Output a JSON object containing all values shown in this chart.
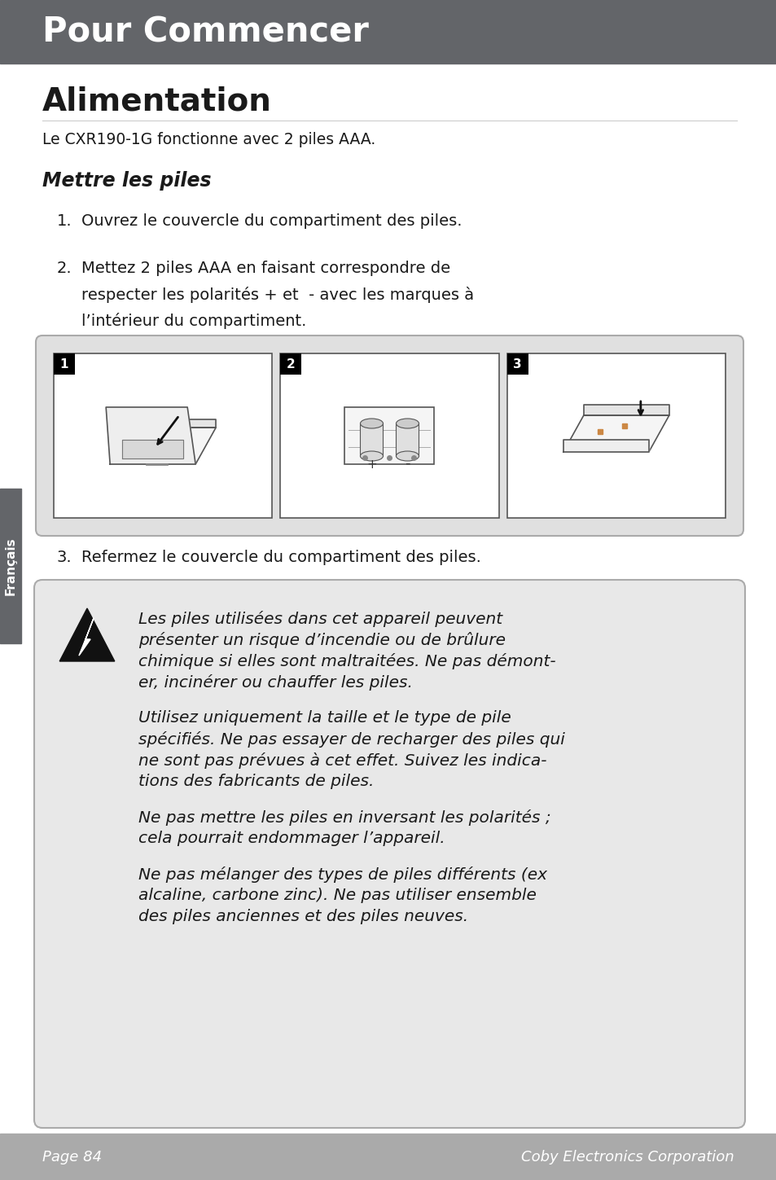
{
  "header_text": "Pour Commencer",
  "header_bg": "#636569",
  "header_text_color": "#ffffff",
  "page_bg": "#ffffff",
  "title_alimentation": "Alimentation",
  "subtitle_batteries": "Mettre les piles",
  "intro_text": "Le CXR190-1G fonctionne avec 2 piles AAA.",
  "step1": "Ouvrez le couvercle du compartiment des piles.",
  "step2_line1": "Mettez 2 piles AAA en faisant correspondre de",
  "step2_line2": "respecter les polarités + et  - avec les marques à",
  "step2_line3": "l’intérieur du compartiment.",
  "step3": "Refermez le couvercle du compartiment des piles.",
  "warning_box_bg": "#e8e8e8",
  "warning_box_border": "#aaaaaa",
  "warning_para1_lines": [
    "Les piles utilisées dans cet appareil peuvent",
    "présenter un risque d’incendie ou de brûlure",
    "chimique si elles sont maltraitées. Ne pas démont-",
    "er, incinérer ou chauffer les piles."
  ],
  "warning_para2_lines": [
    "Utilisez uniquement la taille et le type de pile",
    "spécifiés. Ne pas essayer de recharger des piles qui",
    "ne sont pas prévues à cet effet. Suivez les indica-",
    "tions des fabricants de piles."
  ],
  "warning_para3_lines": [
    "Ne pas mettre les piles en inversant les polarités ;",
    "cela pourrait endommager l’appareil."
  ],
  "warning_para4_lines": [
    "Ne pas mélanger des types de piles différents (ex",
    "alcaline, carbone zinc). Ne pas utiliser ensemble",
    "des piles anciennes et des piles neuves."
  ],
  "footer_bg": "#aaaaaa",
  "footer_text_color": "#ffffff",
  "footer_left": "Page 84",
  "footer_right": "Coby Electronics Corporation",
  "sidebar_text": "Français",
  "sidebar_bg": "#636569",
  "sidebar_text_color": "#ffffff",
  "img_box_bg": "#e0e0e0",
  "img_box_border": "#aaaaaa",
  "panel_bg": "#ffffff",
  "panel_border": "#555555"
}
